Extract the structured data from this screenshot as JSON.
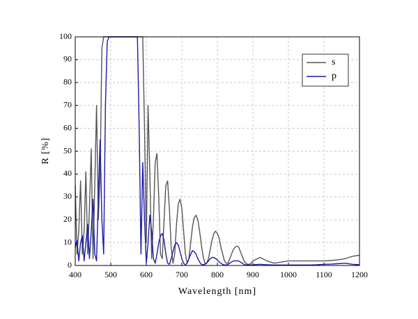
{
  "chart_data": {
    "type": "line",
    "x_label": "Wavelength [nm]",
    "y_label": "R [%]",
    "x": [
      400,
      405,
      410,
      415,
      420,
      425,
      430,
      435,
      440,
      445,
      450,
      455,
      460,
      465,
      470,
      475,
      480,
      485,
      490,
      495,
      500,
      505,
      510,
      515,
      520,
      525,
      530,
      535,
      540,
      545,
      550,
      555,
      560,
      565,
      570,
      575,
      580,
      585,
      590,
      595,
      600,
      605,
      610,
      615,
      620,
      625,
      630,
      635,
      640,
      645,
      650,
      655,
      660,
      665,
      670,
      675,
      680,
      685,
      690,
      695,
      700,
      705,
      710,
      715,
      720,
      725,
      730,
      735,
      740,
      745,
      750,
      755,
      760,
      765,
      770,
      775,
      780,
      785,
      790,
      795,
      800,
      805,
      810,
      815,
      820,
      825,
      830,
      835,
      840,
      845,
      850,
      855,
      860,
      865,
      870,
      875,
      880,
      885,
      890,
      895,
      900,
      920,
      940,
      960,
      980,
      1000,
      1020,
      1040,
      1060,
      1080,
      1100,
      1120,
      1140,
      1160,
      1180,
      1200
    ],
    "series": [
      {
        "name": "s",
        "color": "#555555",
        "values": [
          35,
          5,
          15,
          37,
          5,
          15,
          41,
          5,
          25,
          51,
          3,
          35,
          70,
          20,
          40,
          95,
          100,
          100,
          100,
          100,
          100,
          100,
          100,
          100,
          100,
          100,
          100,
          100,
          100,
          100,
          100,
          100,
          100,
          100,
          100,
          100,
          100,
          100,
          100,
          60,
          10,
          70,
          40,
          3,
          20,
          45,
          49,
          30,
          5,
          3,
          20,
          35,
          37,
          25,
          8,
          1,
          5,
          18,
          27,
          29,
          25,
          15,
          5,
          1,
          3,
          10,
          17,
          21,
          22,
          20,
          15,
          9,
          4,
          1,
          1,
          3,
          7,
          11,
          14,
          15,
          14,
          12,
          8,
          5,
          2,
          1,
          1,
          3,
          5,
          7,
          8,
          8.5,
          8,
          6,
          4,
          2,
          1,
          0.5,
          0.5,
          1,
          2,
          3.5,
          2,
          1,
          1.5,
          2,
          2,
          2,
          2,
          2,
          2,
          2.2,
          2.5,
          3,
          4,
          4.5
        ]
      },
      {
        "name": "p",
        "color": "#1a1aaa",
        "values": [
          8,
          11,
          2,
          10,
          13,
          2,
          10,
          18,
          3,
          15,
          29,
          5,
          2,
          30,
          55,
          20,
          5,
          70,
          98,
          100,
          100,
          100,
          100,
          100,
          100,
          100,
          100,
          100,
          100,
          100,
          100,
          100,
          100,
          100,
          100,
          100,
          60,
          5,
          45,
          20,
          1,
          10,
          22,
          15,
          3,
          1,
          5,
          10,
          13,
          14,
          11,
          5,
          1,
          0.5,
          3,
          6,
          9,
          10,
          9,
          6,
          3,
          1,
          0.3,
          1,
          3,
          5,
          6.5,
          6,
          5,
          3,
          1.5,
          0.5,
          0.3,
          0.5,
          1,
          2,
          3,
          3.5,
          3.5,
          3,
          2.5,
          1.5,
          1,
          0.5,
          0.2,
          0.2,
          0.5,
          1,
          1.5,
          2,
          2,
          2,
          2,
          1.5,
          1,
          0.5,
          0.2,
          0.2,
          0.2,
          0.2,
          0.3,
          0.5,
          0.3,
          0.2,
          0.2,
          0.2,
          0.2,
          0.2,
          0.2,
          0.3,
          0.5,
          0.6,
          0.8,
          1,
          0.5,
          0.3
        ]
      }
    ],
    "xlim": [
      400,
      1200
    ],
    "xticks": [
      400,
      500,
      600,
      700,
      800,
      900,
      1000,
      1100,
      1200
    ],
    "ylim": [
      0,
      100
    ],
    "yticks": [
      0,
      10,
      20,
      30,
      40,
      50,
      60,
      70,
      80,
      90,
      100
    ],
    "grid": true,
    "legend": "upper right"
  }
}
